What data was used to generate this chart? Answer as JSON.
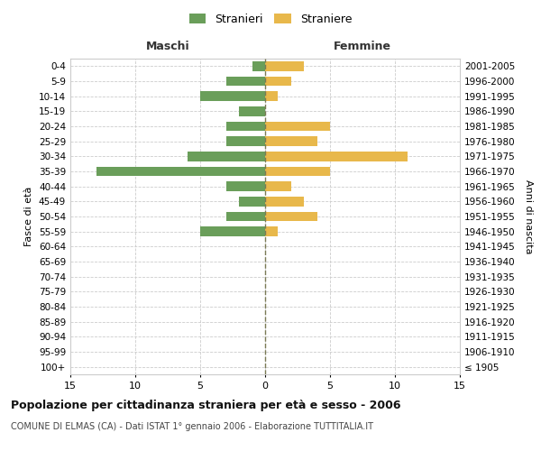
{
  "age_groups": [
    "100+",
    "95-99",
    "90-94",
    "85-89",
    "80-84",
    "75-79",
    "70-74",
    "65-69",
    "60-64",
    "55-59",
    "50-54",
    "45-49",
    "40-44",
    "35-39",
    "30-34",
    "25-29",
    "20-24",
    "15-19",
    "10-14",
    "5-9",
    "0-4"
  ],
  "birth_years": [
    "≤ 1905",
    "1906-1910",
    "1911-1915",
    "1916-1920",
    "1921-1925",
    "1926-1930",
    "1931-1935",
    "1936-1940",
    "1941-1945",
    "1946-1950",
    "1951-1955",
    "1956-1960",
    "1961-1965",
    "1966-1970",
    "1971-1975",
    "1976-1980",
    "1981-1985",
    "1986-1990",
    "1991-1995",
    "1996-2000",
    "2001-2005"
  ],
  "males": [
    0,
    0,
    0,
    0,
    0,
    0,
    0,
    0,
    0,
    5,
    3,
    2,
    3,
    13,
    6,
    3,
    3,
    2,
    5,
    3,
    1
  ],
  "females": [
    0,
    0,
    0,
    0,
    0,
    0,
    0,
    0,
    0,
    1,
    4,
    3,
    2,
    5,
    11,
    4,
    5,
    0,
    1,
    2,
    3
  ],
  "male_color": "#6a9e5a",
  "female_color": "#e8b84b",
  "male_label": "Stranieri",
  "female_label": "Straniere",
  "title": "Popolazione per cittadinanza straniera per età e sesso - 2006",
  "subtitle": "COMUNE DI ELMAS (CA) - Dati ISTAT 1° gennaio 2006 - Elaborazione TUTTITALIA.IT",
  "xlabel_left": "Maschi",
  "xlabel_right": "Femmine",
  "ylabel_left": "Fasce di età",
  "ylabel_right": "Anni di nascita",
  "xlim": 15,
  "background_color": "#ffffff",
  "grid_color": "#cccccc",
  "centerline_color": "#7a7a55"
}
